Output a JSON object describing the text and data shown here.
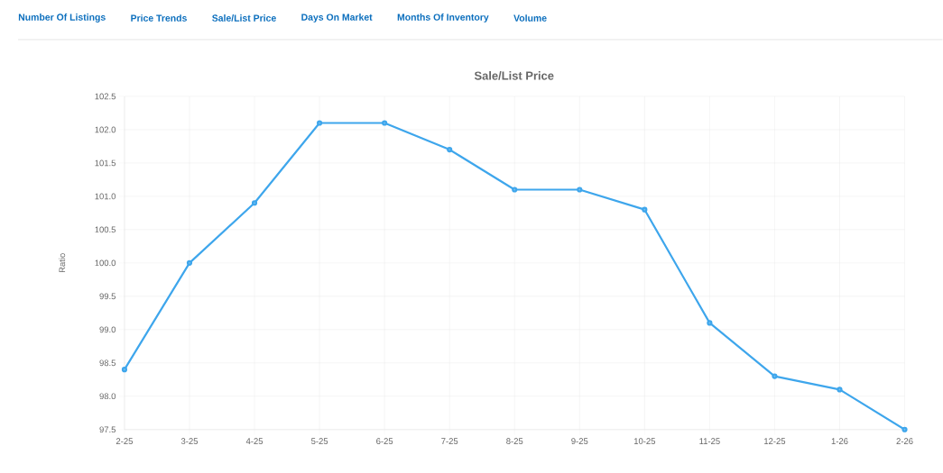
{
  "chart_data": {
    "type": "line",
    "title": "Sale/List Price",
    "ylabel": "Ratio",
    "annotations": [
      "Number Of Listings",
      "Price Trends",
      "Sale/List Price",
      "Days On Market",
      "Months Of Inventory",
      "Volume"
    ],
    "categories": [
      "2-25",
      "3-25",
      "4-25",
      "5-25",
      "6-25",
      "7-25",
      "8-25",
      "9-25",
      "10-25",
      "11-25",
      "12-25",
      "1-26",
      "2-26"
    ],
    "series": [
      {
        "color": "#3ea6ec",
        "values": [
          98.4,
          100.0,
          100.9,
          102.1,
          102.1,
          101.7,
          101.1,
          101.1,
          100.8,
          99.1,
          98.3,
          98.1,
          97.5
        ]
      }
    ],
    "ylim": [
      97.5,
      102.5
    ],
    "yticks": [
      {
        "value": 97.5,
        "label": "97.5"
      },
      {
        "value": 98,
        "label": "98.0"
      },
      {
        "value": 98.5,
        "label": "98.5"
      },
      {
        "value": 99,
        "label": "99.0"
      },
      {
        "value": 99.5,
        "label": "99.5"
      },
      {
        "value": 100,
        "label": "100.0"
      },
      {
        "value": 100.5,
        "label": "100.5"
      },
      {
        "value": 101,
        "label": "101.0"
      },
      {
        "value": 101.5,
        "label": "101.5"
      },
      {
        "value": 102,
        "label": "102.0"
      },
      {
        "value": 102.5,
        "label": "102.5"
      }
    ],
    "grid": true,
    "marker": "circle",
    "line_style": "solid"
  }
}
